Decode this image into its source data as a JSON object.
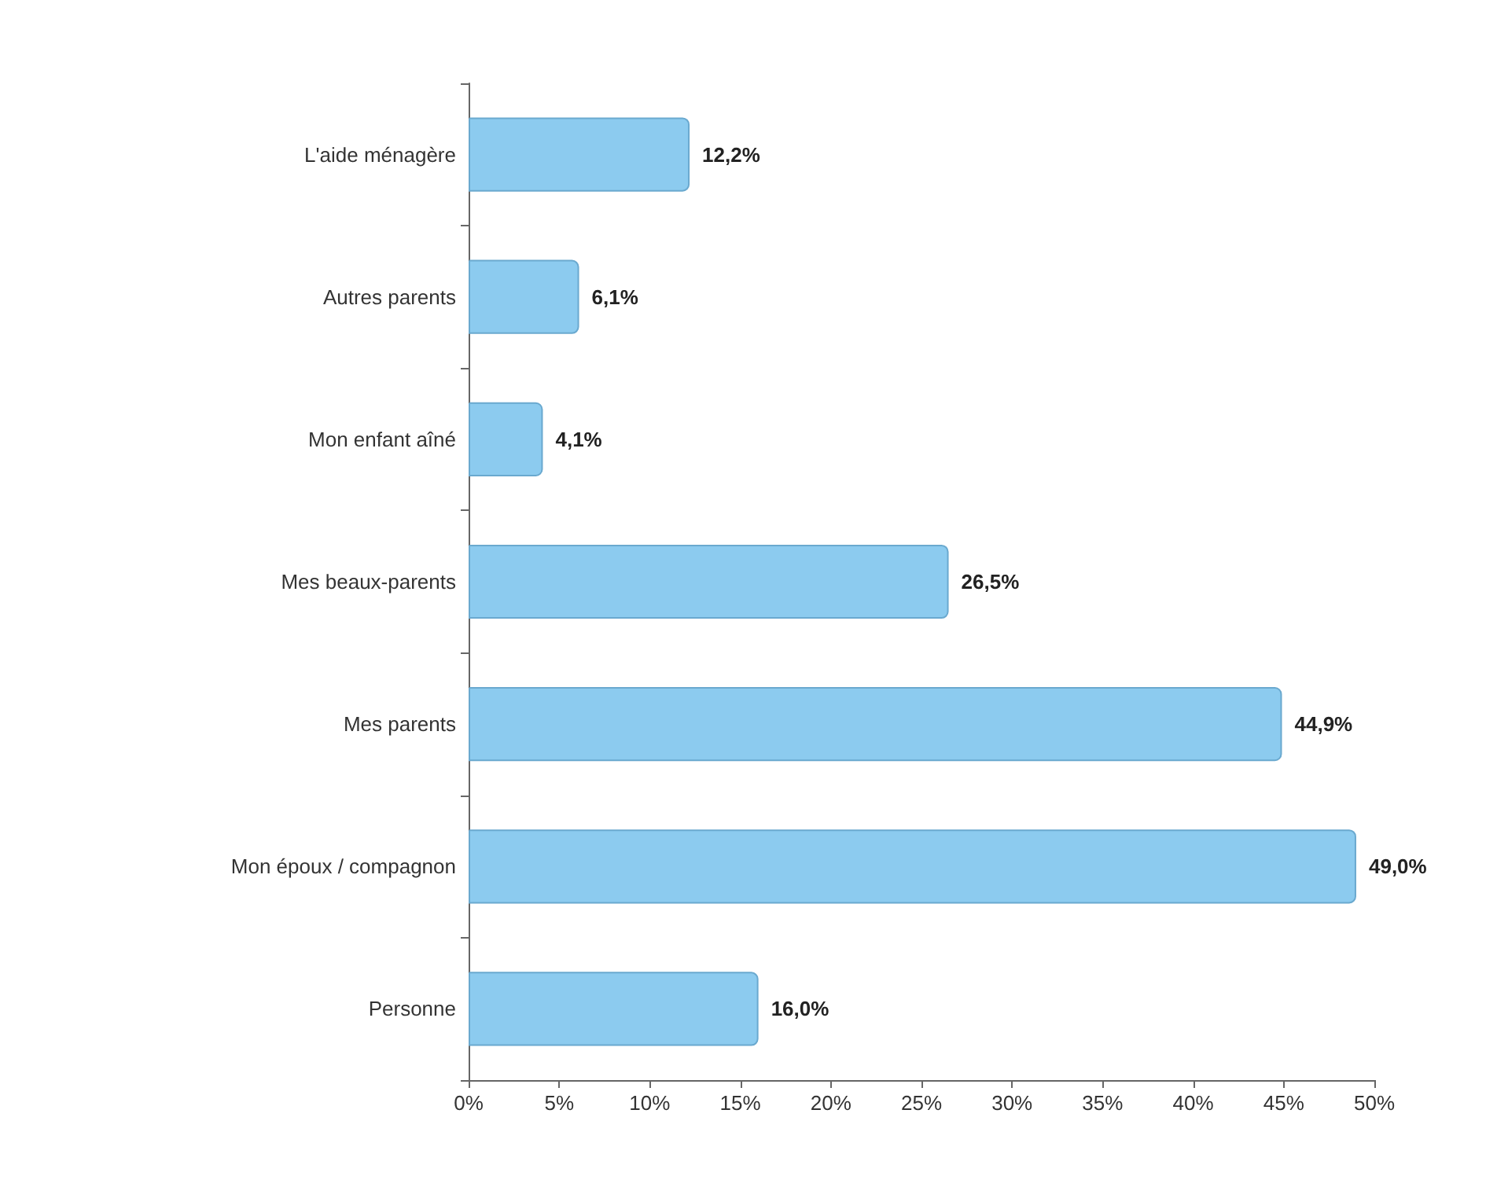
{
  "chart_data": {
    "type": "bar",
    "orientation": "horizontal",
    "categories": [
      "L'aide ménagère",
      "Autres parents",
      "Mon enfant aîné",
      "Mes beaux-parents",
      "Mes parents",
      "Mon époux / compagnon",
      "Personne"
    ],
    "values": [
      12.2,
      6.1,
      4.1,
      26.5,
      44.9,
      49.0,
      16.0
    ],
    "value_labels": [
      "12,2%",
      "6,1%",
      "4,1%",
      "26,5%",
      "44,9%",
      "49,0%",
      "16,0%"
    ],
    "color": "#8ccbef",
    "xlim": [
      0,
      50
    ],
    "xticks": [
      {
        "value": 0,
        "label": "0%"
      },
      {
        "value": 5,
        "label": "5%"
      },
      {
        "value": 10,
        "label": "10%"
      },
      {
        "value": 15,
        "label": "15%"
      },
      {
        "value": 20,
        "label": "20%"
      },
      {
        "value": 25,
        "label": "25%"
      },
      {
        "value": 30,
        "label": "30%"
      },
      {
        "value": 35,
        "label": "35%"
      },
      {
        "value": 40,
        "label": "40%"
      },
      {
        "value": 45,
        "label": "45%"
      },
      {
        "value": 50,
        "label": "50%"
      }
    ],
    "grid": false
  }
}
